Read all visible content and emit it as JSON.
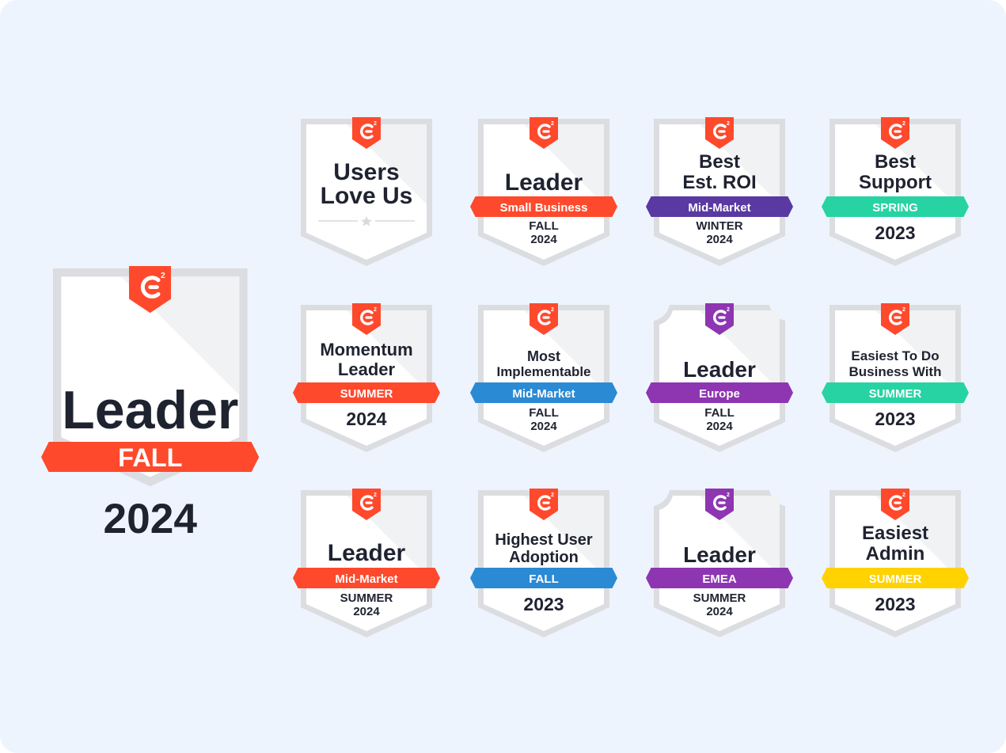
{
  "colors": {
    "background": "#eef4fd",
    "g2_red": "#ff492c",
    "purple": "#5a39a2",
    "teal": "#27d3a2",
    "blue": "#2b8ad4",
    "violet": "#8e35b2",
    "yellow": "#ffd200"
  },
  "badges": [
    {
      "id": "big",
      "logo": "G2",
      "lines": [
        "Leader"
      ],
      "ribbon": "FALL",
      "ribbon_color": "#ff492c",
      "season": [],
      "year": "2024"
    },
    {
      "id": "r1c1",
      "logo": "G2",
      "lines": [
        "Users",
        "Love Us"
      ],
      "ribbon": "",
      "season": [],
      "year": ""
    },
    {
      "id": "r1c2",
      "logo": "G2",
      "lines": [
        "Leader"
      ],
      "ribbon": "Small Business",
      "ribbon_color": "#ff492c",
      "season": [
        "FALL",
        "2024"
      ],
      "year": ""
    },
    {
      "id": "r1c3",
      "logo": "G2",
      "lines": [
        "Best",
        "Est. ROI"
      ],
      "ribbon": "Mid-Market",
      "ribbon_color": "#5a39a2",
      "season": [
        "WINTER",
        "2024"
      ],
      "year": ""
    },
    {
      "id": "r1c4",
      "logo": "G2",
      "lines": [
        "Best",
        "Support"
      ],
      "ribbon": "SPRING",
      "ribbon_color": "#27d3a2",
      "season": [],
      "year": "2023"
    },
    {
      "id": "r2c1",
      "logo": "G2",
      "lines": [
        "Momentum",
        "Leader"
      ],
      "ribbon": "SUMMER",
      "ribbon_color": "#ff492c",
      "season": [],
      "year": "2024"
    },
    {
      "id": "r2c2",
      "logo": "G2",
      "lines": [
        "Most",
        "Implementable"
      ],
      "ribbon": "Mid-Market",
      "ribbon_color": "#2b8ad4",
      "season": [
        "FALL",
        "2024"
      ],
      "year": ""
    },
    {
      "id": "r2c3",
      "logo": "G2",
      "lines": [
        "Leader"
      ],
      "ribbon": "Europe",
      "ribbon_color": "#8e35b2",
      "season": [
        "FALL",
        "2024"
      ],
      "year": ""
    },
    {
      "id": "r2c4",
      "logo": "G2",
      "lines": [
        "Easiest To Do",
        "Business With"
      ],
      "ribbon": "SUMMER",
      "ribbon_color": "#27d3a2",
      "season": [],
      "year": "2023"
    },
    {
      "id": "r3c1",
      "logo": "G2",
      "lines": [
        "Leader"
      ],
      "ribbon": "Mid-Market",
      "ribbon_color": "#ff492c",
      "season": [
        "SUMMER",
        "2024"
      ],
      "year": ""
    },
    {
      "id": "r3c2",
      "logo": "G2",
      "lines": [
        "Highest User",
        "Adoption"
      ],
      "ribbon": "FALL",
      "ribbon_color": "#2b8ad4",
      "season": [],
      "year": "2023"
    },
    {
      "id": "r3c3",
      "logo": "G2",
      "lines": [
        "Leader"
      ],
      "ribbon": "EMEA",
      "ribbon_color": "#8e35b2",
      "season": [
        "SUMMER",
        "2024"
      ],
      "year": ""
    },
    {
      "id": "r3c4",
      "logo": "G2",
      "lines": [
        "Easiest",
        "Admin"
      ],
      "ribbon": "SUMMER",
      "ribbon_color": "#ffd200",
      "season": [],
      "year": "2023"
    }
  ]
}
